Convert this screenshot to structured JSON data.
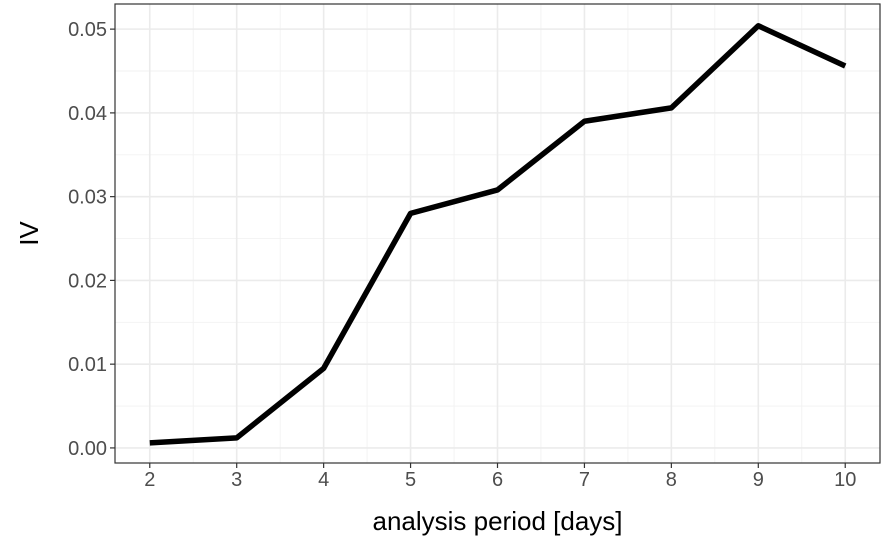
{
  "chart_data": {
    "type": "line",
    "title": "",
    "xlabel": "analysis period [days]",
    "ylabel": "IV",
    "x": [
      2,
      3,
      4,
      5,
      6,
      7,
      8,
      9,
      10
    ],
    "series": [
      {
        "values": [
          0.0006,
          0.0012,
          0.0095,
          0.028,
          0.0308,
          0.039,
          0.0406,
          0.0504,
          0.0456
        ]
      }
    ],
    "xlim": [
      1.6,
      10.4
    ],
    "ylim": [
      -0.0018,
      0.053
    ],
    "x_ticks": [
      2,
      3,
      4,
      5,
      6,
      7,
      8,
      9,
      10
    ],
    "x_tick_labels": [
      "2",
      "3",
      "4",
      "5",
      "6",
      "7",
      "8",
      "9",
      "10"
    ],
    "y_ticks": [
      0.0,
      0.01,
      0.02,
      0.03,
      0.04,
      0.05
    ],
    "y_tick_labels": [
      "0.00",
      "0.01",
      "0.02",
      "0.03",
      "0.04",
      "0.05"
    ],
    "grid": true,
    "legend": "none",
    "line_color": "#000000",
    "grid_color": "#ebebeb"
  }
}
